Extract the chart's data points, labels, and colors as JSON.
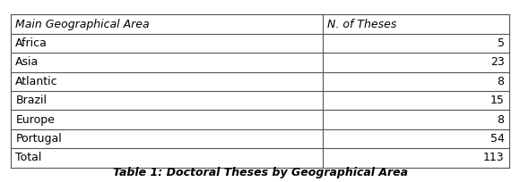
{
  "col1_header": "Main Geographical Area",
  "col2_header": "N. of Theses",
  "rows": [
    [
      "Africa",
      "5"
    ],
    [
      "Asia",
      "23"
    ],
    [
      "Atlantic",
      "8"
    ],
    [
      "Brazil",
      "15"
    ],
    [
      "Europe",
      "8"
    ],
    [
      "Portugal",
      "54"
    ],
    [
      "Total",
      "113"
    ]
  ],
  "caption": "Table 1: Doctoral Theses by Geographical Area",
  "bg_color": "#ffffff",
  "header_bg": "#ffffff",
  "line_color": "#555555",
  "text_color": "#000000",
  "font_size": 9,
  "caption_font_size": 9,
  "col_split": 0.62
}
